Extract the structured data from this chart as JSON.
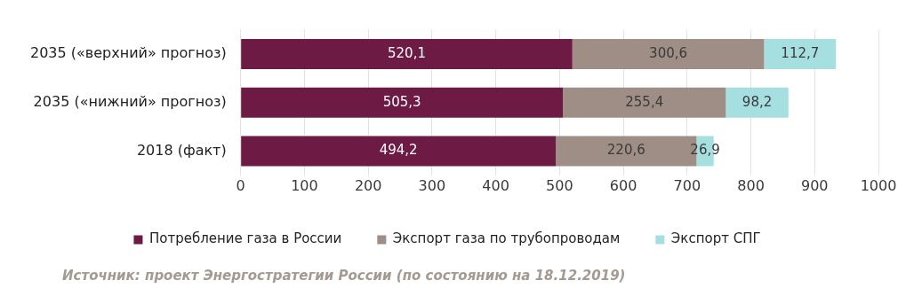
{
  "chart_data": {
    "type": "bar",
    "orientation": "horizontal",
    "stacked": true,
    "categories": [
      "2035 («верхний» прогноз)",
      "2035 («нижний» прогноз)",
      "2018 (факт)"
    ],
    "series": [
      {
        "name": "Потребление газа в России",
        "color": "#6d1a45",
        "values": [
          520.1,
          505.3,
          494.2
        ],
        "value_labels": [
          "520,1",
          "505,3",
          "494,2"
        ]
      },
      {
        "name": "Экспорт газа по трубопроводам",
        "color": "#9e8e86",
        "values": [
          300.6,
          255.4,
          220.6
        ],
        "value_labels": [
          "300,6",
          "255,4",
          "220,6"
        ]
      },
      {
        "name": "Экспорт СПГ",
        "color": "#a6dfe0",
        "values": [
          112.7,
          98.2,
          26.9
        ],
        "value_labels": [
          "112,7",
          "98,2",
          "26,9"
        ]
      }
    ],
    "xlim": [
      0,
      1000
    ],
    "xticks": [
      0,
      100,
      200,
      300,
      400,
      500,
      600,
      700,
      800,
      900,
      1000
    ],
    "grid": "x",
    "legend": "bottom",
    "annotations": [
      "Источник: проект Энергостратегии России (по состоянию на 18.12.2019)"
    ]
  }
}
